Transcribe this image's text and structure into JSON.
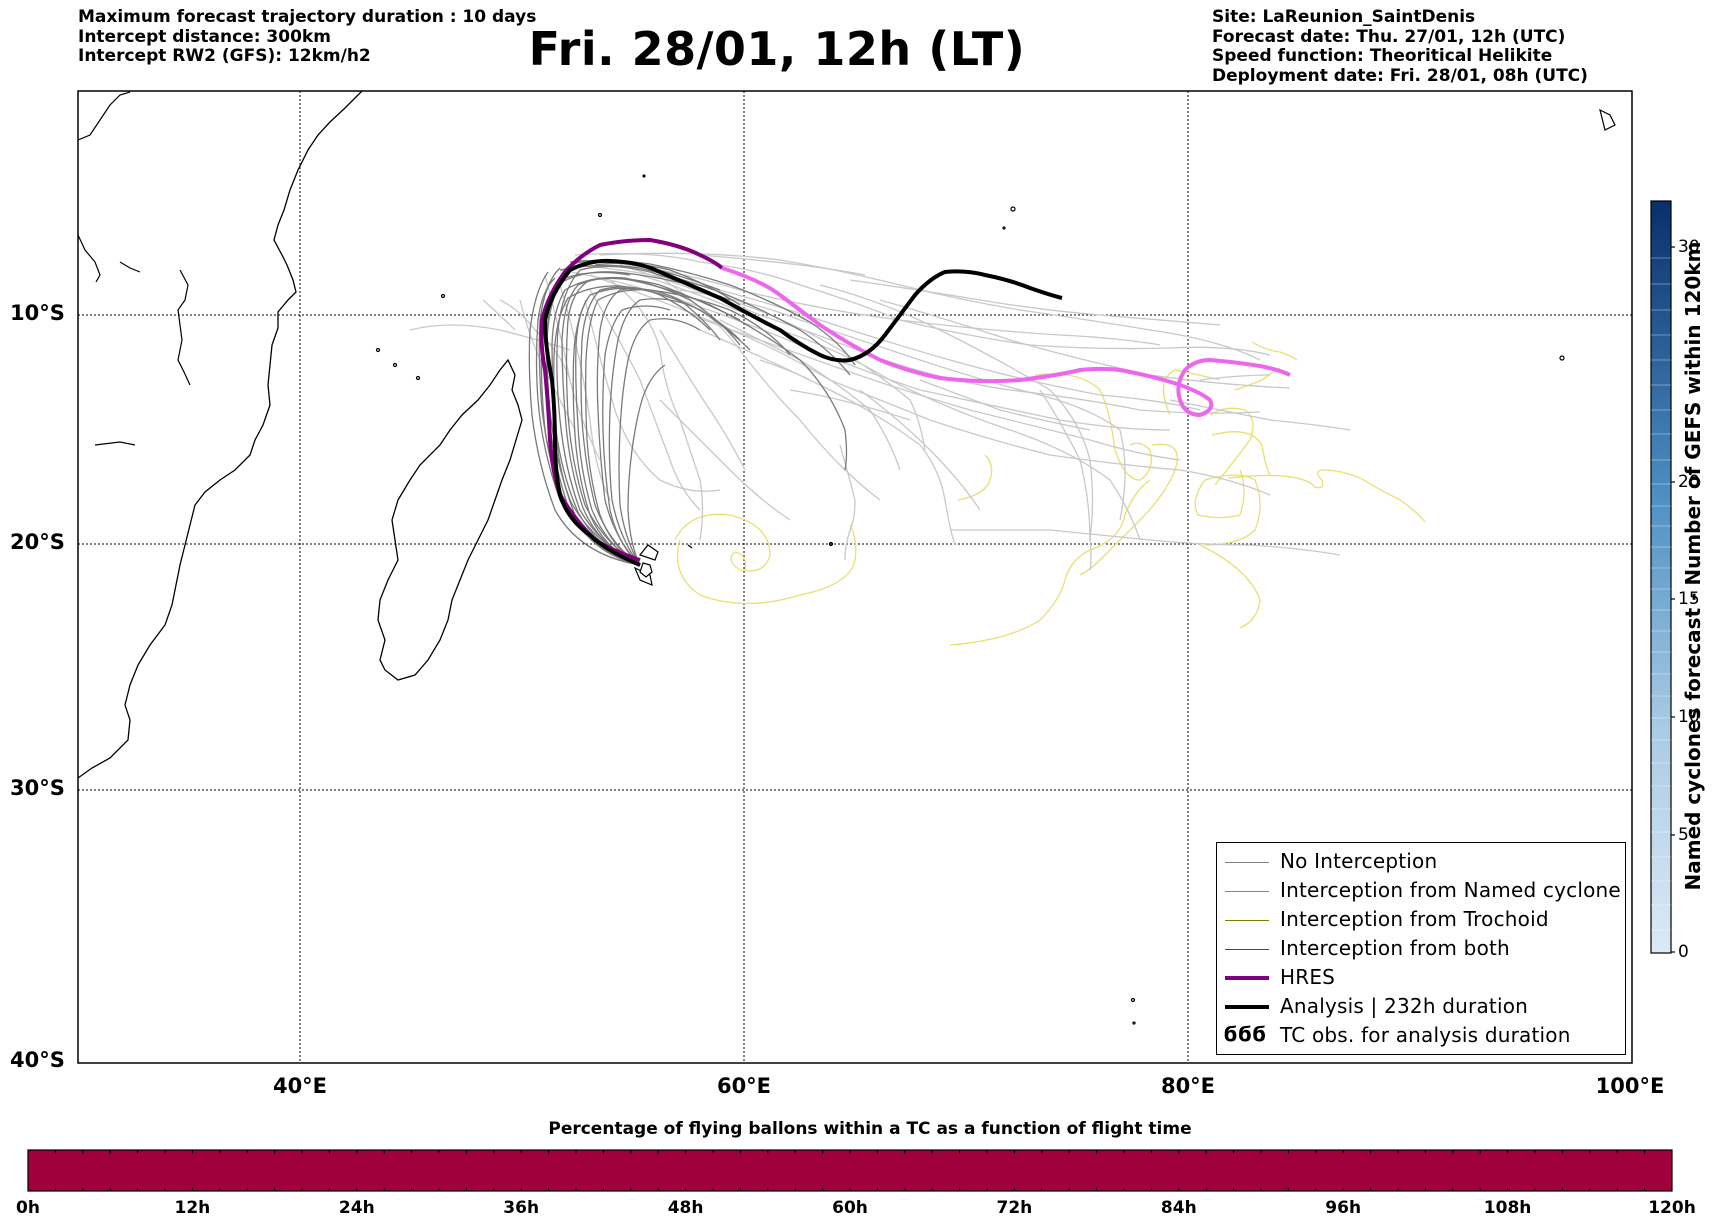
{
  "header": {
    "left": [
      "Maximum forecast trajectory duration : 10 days",
      "Intercept distance: 300km",
      "Intercept RW2 (GFS):  12km/h2"
    ],
    "title": "Fri. 28/01, 12h (LT)",
    "right": [
      "Site: LaReunion_SaintDenis",
      "Forecast date: Thu. 27/01, 12h (UTC)",
      "Speed function: Theoritical Helikite",
      "Deployment date: Fri. 28/01, 08h (UTC)"
    ]
  },
  "map": {
    "lon_labels": [
      "40°E",
      "60°E",
      "80°E",
      "100°E"
    ],
    "lat_labels": [
      "10°S",
      "20°S",
      "30°S",
      "40°S"
    ],
    "launch_site": "LaReunion_SaintDenis"
  },
  "legend": {
    "items": [
      {
        "label": "No Interception",
        "color": "#808080",
        "style": "thin"
      },
      {
        "label": "Interception from Named cyclone",
        "color": "#ff5a1f",
        "style": "thin"
      },
      {
        "label": "Interception from Trochoid",
        "color": "#808000",
        "style": "thin"
      },
      {
        "label": "Interception from both",
        "color": "#008000",
        "style": "thin"
      },
      {
        "label": "HRES",
        "color": "#800080",
        "style": "thick"
      },
      {
        "label": "Analysis | 232h duration",
        "color": "#000000",
        "style": "thick"
      },
      {
        "label": "TC obs. for analysis duration",
        "color": "#000000",
        "style": "glyph",
        "glyph": "ϭϭϭ"
      }
    ]
  },
  "colorbar_right": {
    "title": "Named cyclones forecast - Number of GEFS within 120km",
    "ticks": [
      "0",
      "5",
      "10",
      "15",
      "20",
      "30"
    ],
    "color_low": "#dce9f6",
    "color_high": "#08306b"
  },
  "colorbar_bottom": {
    "title": "Percentage of flying ballons within a TC as a function of flight time",
    "ticks": [
      "0h",
      "12h",
      "24h",
      "36h",
      "48h",
      "60h",
      "72h",
      "84h",
      "96h",
      "108h",
      "120h"
    ],
    "fill_color": "#a0003c",
    "percentage": 100
  },
  "colors": {
    "ensemble": "#7a7a7a",
    "ensemble_light": "#c8c8c8",
    "hres": "#800080",
    "hres_later": "#ee66ee",
    "analysis": "#000000",
    "tc_obs": "#e8e070"
  }
}
